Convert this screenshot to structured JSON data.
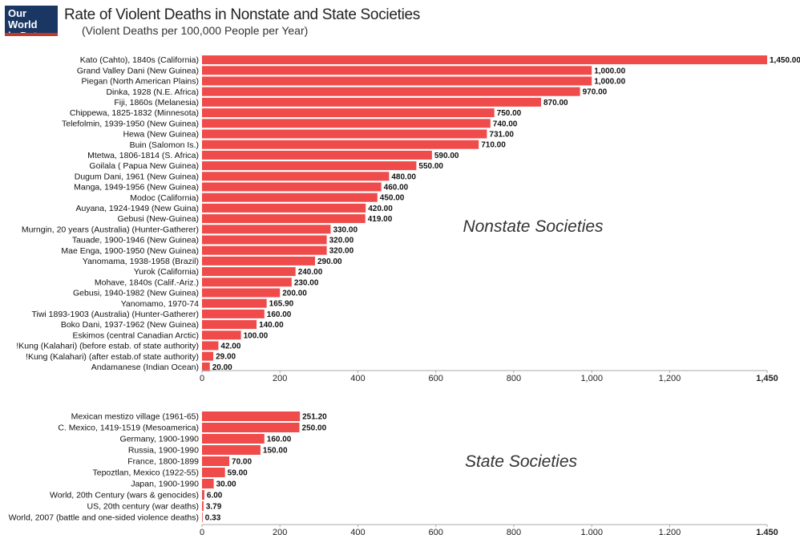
{
  "logo": {
    "line1": "Our World",
    "line2": "in Data"
  },
  "title": "Rate of Violent Deaths in Nonstate and State Societies",
  "subtitle": "(Violent Deaths per 100,000 People per Year)",
  "colors": {
    "bar": "#f04b4b",
    "axis": "#aaaaaa",
    "logo_bg": "#1a3763"
  },
  "chart_data": [
    {
      "type": "bar",
      "orientation": "horizontal",
      "panel_label": "Nonstate Societies",
      "xlim": [
        0,
        1450
      ],
      "ticks": [
        0,
        200,
        400,
        600,
        800,
        1000,
        1200,
        1450
      ],
      "tick_labels": [
        "0",
        "200",
        "400",
        "600",
        "800",
        "1,000",
        "1,200",
        "1,450"
      ],
      "categories": [
        "Kato (Cahto), 1840s (California)",
        "Grand Valley Dani (New Guinea)",
        "Piegan (North American Plains)",
        "Dinka, 1928 (N.E. Africa)",
        "Fiji, 1860s (Melanesia)",
        "Chippewa, 1825-1832 (Minnesota)",
        "Telefolmin, 1939-1950 (New Guinea)",
        "Hewa (New Guinea)",
        "Buin (Salomon Is.)",
        "Mtetwa, 1806-1814 (S. Africa)",
        "Goilala ( Papua New Guinea)",
        "Dugum Dani, 1961 (New Guinea)",
        "Manga, 1949-1956 (New Guinea)",
        "Modoc (California)",
        "Auyana, 1924-1949 (New Guina)",
        "Gebusi (New-Guinea)",
        "Murngin, 20 years (Australia) (Hunter-Gatherer)",
        "Tauade, 1900-1946 (New Guinea)",
        "Mae Enga, 1900-1950 (New Guinea)",
        "Yanomama, 1938-1958 (Brazil)",
        "Yurok (California)",
        "Mohave, 1840s (Calif.-Ariz.)",
        "Gebusi, 1940-1982 (New Guinea)",
        "Yanomamo, 1970-74",
        "Tiwi 1893-1903 (Australia) (Hunter-Gatherer)",
        "Boko Dani, 1937-1962 (New Guinea)",
        "Eskimos (central Canadian Arctic)",
        "!Kung (Kalahari) (before estab. of state authority)",
        "!Kung (Kalahari) (after estab.of state authority)",
        "Andamanese (Indian Ocean)"
      ],
      "values": [
        1450,
        1000,
        1000,
        970,
        870,
        750,
        740,
        731,
        710,
        590,
        550,
        480,
        460,
        450,
        420,
        419,
        330,
        320,
        320,
        290,
        240,
        230,
        200,
        165.9,
        160,
        140,
        100,
        42,
        29,
        20
      ],
      "value_labels": [
        "1,450.00",
        "1,000.00",
        "1,000.00",
        "970.00",
        "870.00",
        "750.00",
        "740.00",
        "731.00",
        "710.00",
        "590.00",
        "550.00",
        "480.00",
        "460.00",
        "450.00",
        "420.00",
        "419.00",
        "330.00",
        "320.00",
        "320.00",
        "290.00",
        "240.00",
        "230.00",
        "200.00",
        "165.90",
        "160.00",
        "140.00",
        "100.00",
        "42.00",
        "29.00",
        "20.00"
      ]
    },
    {
      "type": "bar",
      "orientation": "horizontal",
      "panel_label": "State Societies",
      "xlim": [
        0,
        1450
      ],
      "ticks": [
        0,
        200,
        400,
        600,
        800,
        1000,
        1200,
        1450
      ],
      "tick_labels": [
        "0",
        "200",
        "400",
        "600",
        "800",
        "1,000",
        "1,200",
        "1,450"
      ],
      "categories": [
        "Mexican mestizo village (1961-65)",
        "C. Mexico, 1419-1519 (Mesoamerica)",
        "Germany, 1900-1990",
        "Russia, 1900-1990",
        "France, 1800-1899",
        "Tepoztlan, Mexico (1922-55)",
        "Japan, 1900-1990",
        "World, 20th Century (wars & genocides)",
        "US, 20th century (war deaths)",
        "World, 2007 (battle and one-sided violence deaths)"
      ],
      "values": [
        251.2,
        250,
        160,
        150,
        70,
        59,
        30,
        6,
        3.79,
        0.33
      ],
      "value_labels": [
        "251.20",
        "250.00",
        "160.00",
        "150.00",
        "70.00",
        "59.00",
        "30.00",
        "6.00",
        "3.79",
        "0.33"
      ]
    }
  ]
}
